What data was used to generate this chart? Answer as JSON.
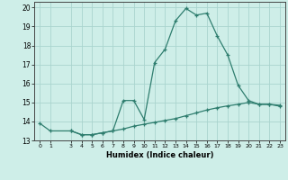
{
  "xlabel": "Humidex (Indice chaleur)",
  "background_color": "#ceeee8",
  "grid_color": "#aad4ce",
  "line_color": "#2e7d6e",
  "line1_x": [
    0,
    1,
    3,
    4,
    5,
    6,
    7,
    8,
    9,
    10,
    11,
    12,
    13,
    14,
    15,
    16,
    17,
    18,
    19,
    20,
    21,
    22,
    23
  ],
  "line1_y": [
    13.9,
    13.5,
    13.5,
    13.3,
    13.3,
    13.4,
    13.5,
    15.1,
    15.1,
    14.1,
    17.1,
    17.8,
    19.3,
    19.95,
    19.6,
    19.7,
    18.5,
    17.5,
    15.9,
    15.1,
    14.9,
    14.9,
    14.8
  ],
  "line2_x": [
    3,
    4,
    5,
    6,
    7,
    8,
    9,
    10,
    11,
    12,
    13,
    14,
    15,
    16,
    17,
    18,
    19,
    20,
    21,
    22,
    23
  ],
  "line2_y": [
    13.5,
    13.3,
    13.3,
    13.4,
    13.5,
    13.6,
    13.75,
    13.85,
    13.95,
    14.05,
    14.15,
    14.3,
    14.45,
    14.6,
    14.72,
    14.82,
    14.9,
    15.0,
    14.9,
    14.9,
    14.85
  ],
  "xlim": [
    0,
    23
  ],
  "ylim": [
    13.0,
    20.3
  ],
  "yticks": [
    13,
    14,
    15,
    16,
    17,
    18,
    19,
    20
  ],
  "xticks": [
    0,
    1,
    3,
    4,
    5,
    6,
    7,
    8,
    9,
    10,
    11,
    12,
    13,
    14,
    15,
    16,
    17,
    18,
    19,
    20,
    21,
    22,
    23
  ],
  "xtick_labels": [
    "0",
    "1",
    "3",
    "4",
    "5",
    "6",
    "7",
    "8",
    "9",
    "10",
    "11",
    "12",
    "13",
    "14",
    "15",
    "16",
    "17",
    "18",
    "19",
    "20",
    "21",
    "22",
    "23"
  ],
  "marker": "+"
}
